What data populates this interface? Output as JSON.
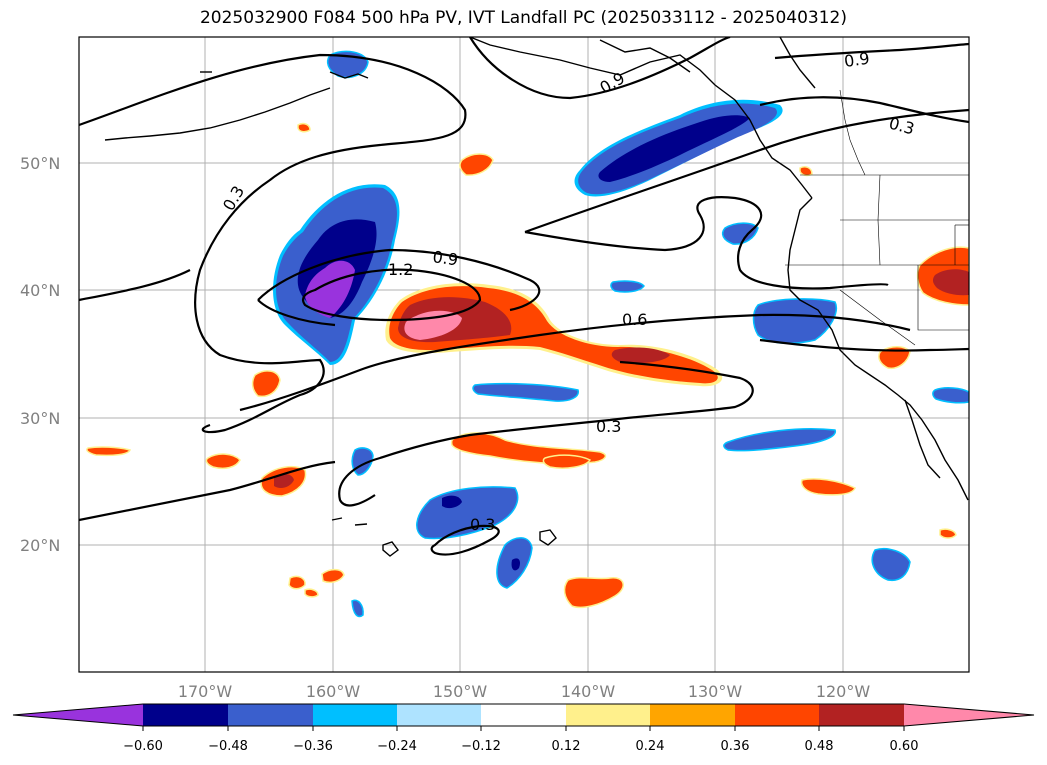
{
  "title": "2025032900 F084 500 hPa PV, IVT Landfall PC (2025033112 - 2025040312)",
  "lat_labels": [
    "50°N",
    "40°N",
    "30°N",
    "20°N"
  ],
  "lon_labels": [
    "170°W",
    "160°W",
    "150°W",
    "140°W",
    "130°W",
    "120°W"
  ],
  "contour_labels": [
    "0.3",
    "0.9",
    "0.9",
    "0.3",
    "0.9",
    "1.2",
    "0.6",
    "0.3",
    "0.3"
  ],
  "colorbar": {
    "ticks": [
      "−0.60",
      "−0.48",
      "−0.36",
      "−0.24",
      "−0.12",
      "0.12",
      "0.24",
      "0.36",
      "0.48",
      "0.60"
    ],
    "colors": [
      "#9933dd",
      "#00008b",
      "#3a5fcd",
      "#00bfff",
      "#aee3ff",
      "#ffffff",
      "#fff08c",
      "#ffa500",
      "#ff4500",
      "#b22222",
      "#ff88aa"
    ]
  },
  "fill_colors": {
    "neg_light": "#aee3ff",
    "neg_cyan": "#00bfff",
    "neg_blue": "#3a5fcd",
    "neg_navy": "#00008b",
    "neg_purple": "#9933dd",
    "pos_yellow": "#fff08c",
    "pos_orange": "#ffa500",
    "pos_redorange": "#ff4500",
    "pos_darkred": "#b22222",
    "pos_pink": "#ff88aa"
  }
}
